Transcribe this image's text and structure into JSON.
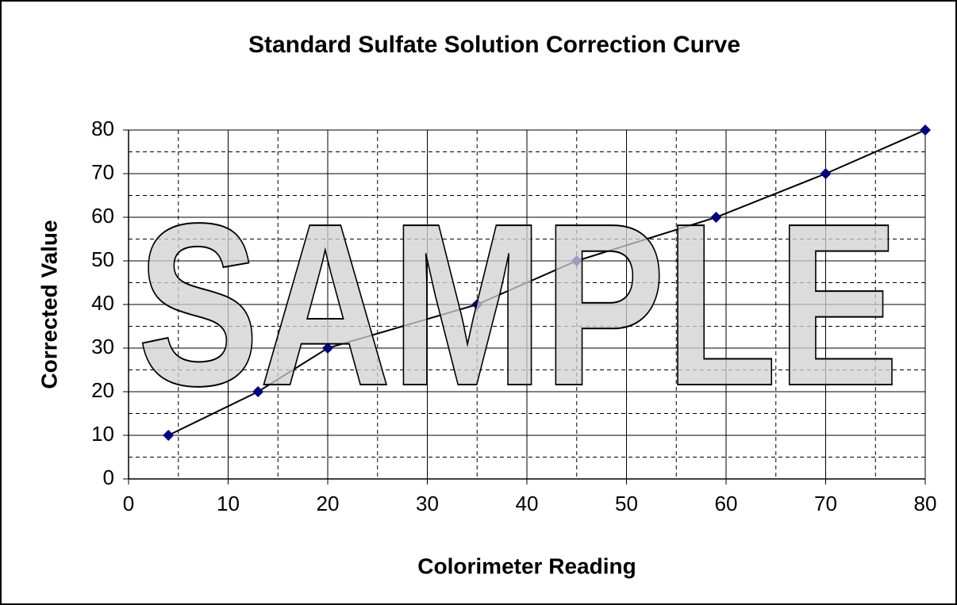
{
  "chart_data": {
    "type": "line",
    "title": "Standard Sulfate Solution Correction Curve",
    "x_label": "Colorimeter Reading",
    "y_label": "Corrected Value",
    "watermark": "SAMPLE",
    "x": [
      4,
      13,
      20,
      35,
      45,
      59,
      70,
      80
    ],
    "values": [
      10,
      20,
      30,
      40,
      50,
      60,
      70,
      80
    ],
    "color": "#000000",
    "marker_color": "#000080",
    "xlim": [
      0,
      80
    ],
    "xticks": [
      0,
      10,
      20,
      30,
      40,
      50,
      60,
      70,
      80
    ],
    "ylim": [
      0,
      80
    ],
    "yticks": [
      0,
      10,
      20,
      30,
      40,
      50,
      60,
      70,
      80
    ],
    "x_minor_grid": [
      5,
      15,
      25,
      35,
      45,
      55,
      65,
      75
    ],
    "y_minor_grid": [
      5,
      15,
      25,
      35,
      45,
      55,
      65,
      75
    ],
    "grid": true
  }
}
